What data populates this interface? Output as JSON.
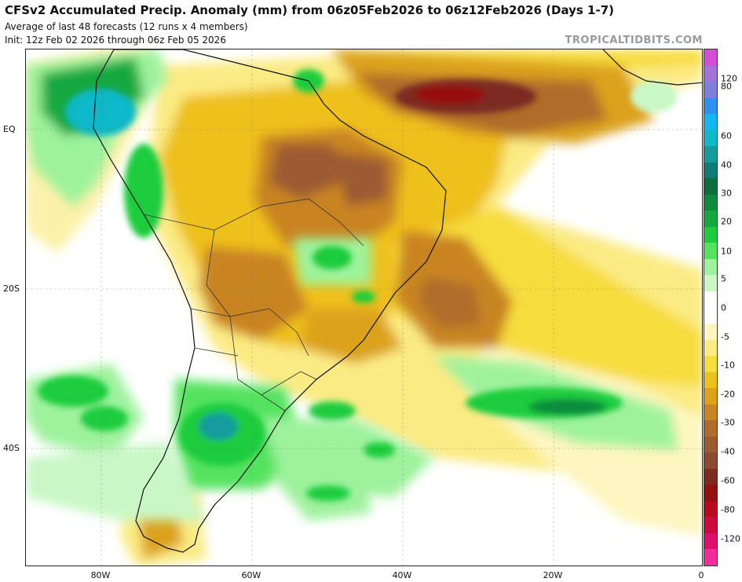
{
  "header": {
    "title": "CFSv2 Accumulated Precip. Anomaly (mm) from 06z05Feb2026 to 06z12Feb2026 (Days 1-7)",
    "subtitle": "Average of last 48 forecasts (12 runs x 4 members)",
    "init": "Init: 12z Feb 02 2026 through 06z Feb 05 2026",
    "credit": "TROPICALTIDBITS.COM"
  },
  "axes": {
    "lat_labels": [
      "EQ",
      "20S",
      "40S"
    ],
    "lon_labels": [
      "80W",
      "60W",
      "40W",
      "20W",
      "0"
    ]
  },
  "colorbar": {
    "labels": [
      "120",
      "80",
      "60",
      "40",
      "30",
      "20",
      "10",
      "5",
      "0",
      "-5",
      "-10",
      "-20",
      "-30",
      "-40",
      "-60",
      "-80",
      "-120"
    ],
    "colors": [
      "#d24fd4",
      "#a373d6",
      "#7d7fd9",
      "#2f8ef2",
      "#13b8ee",
      "#11b8c9",
      "#149b9c",
      "#0f7b75",
      "#0b6f3b",
      "#0e8b3e",
      "#14a83f",
      "#1fcc3d",
      "#55e35e",
      "#9ef29c",
      "#c9f7c6",
      "#ffffff",
      "#ffffff",
      "#fdf6c0",
      "#fbeb84",
      "#f7dc3e",
      "#eec01c",
      "#dca21b",
      "#c98424",
      "#b06c2a",
      "#9c5a30",
      "#8c4a30",
      "#7c2a20",
      "#960f0f",
      "#b80a1c",
      "#cb0a3e",
      "#dc0f6b",
      "#f22c9b"
    ]
  },
  "map": {
    "region": "South America and South Atlantic",
    "lon_range": [
      -90,
      0
    ],
    "lat_range": [
      9,
      -57
    ]
  }
}
